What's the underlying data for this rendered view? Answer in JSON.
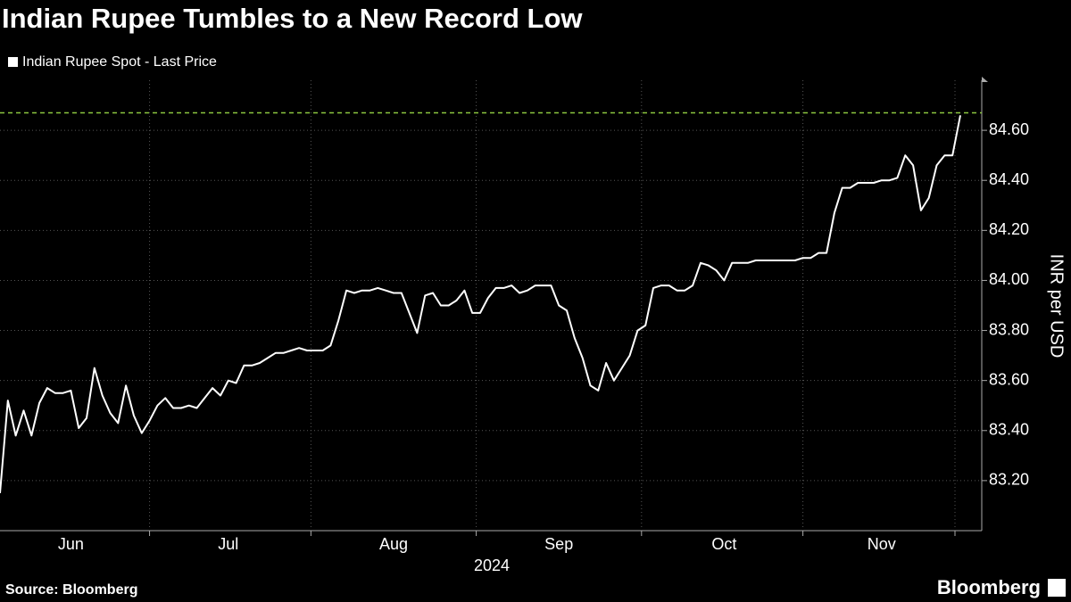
{
  "chart_data": {
    "type": "line",
    "title": "Indian Rupee Tumbles to a New Record Low",
    "source": "Source: Bloomberg",
    "brand": "Bloomberg",
    "y_label": "INR per USD",
    "x_label": "2024",
    "categories": [
      null,
      null,
      null,
      null,
      null,
      null,
      null,
      null,
      null,
      "Jun",
      null,
      null,
      null,
      null,
      null,
      null,
      null,
      null,
      null,
      null,
      null,
      null,
      null,
      null,
      null,
      null,
      null,
      null,
      null,
      "Jul",
      null,
      null,
      null,
      null,
      null,
      null,
      null,
      null,
      null,
      null,
      null,
      null,
      null,
      null,
      null,
      null,
      null,
      null,
      null,
      null,
      "Aug",
      null,
      null,
      null,
      null,
      null,
      null,
      null,
      null,
      null,
      null,
      null,
      null,
      null,
      null,
      null,
      null,
      null,
      null,
      null,
      null,
      "Sep",
      null,
      null,
      null,
      null,
      null,
      null,
      null,
      null,
      null,
      null,
      null,
      null,
      null,
      null,
      null,
      null,
      null,
      null,
      null,
      null,
      "Oct",
      null,
      null,
      null,
      null,
      null,
      null,
      null,
      null,
      null,
      null,
      null,
      null,
      null,
      null,
      null,
      null,
      null,
      null,
      null,
      "Nov",
      null,
      null,
      null,
      null,
      null,
      null,
      null,
      null,
      null,
      null
    ],
    "series": [
      {
        "name": "Indian Rupee Spot - Last Price",
        "color": "#ffffff",
        "values": [
          83.15,
          83.52,
          83.38,
          83.48,
          83.38,
          83.51,
          83.57,
          83.55,
          83.55,
          83.56,
          83.41,
          83.45,
          83.65,
          83.54,
          83.47,
          83.43,
          83.58,
          83.46,
          83.39,
          83.44,
          83.5,
          83.53,
          83.49,
          83.49,
          83.5,
          83.49,
          83.53,
          83.57,
          83.54,
          83.6,
          83.59,
          83.66,
          83.66,
          83.67,
          83.69,
          83.71,
          83.71,
          83.72,
          83.73,
          83.72,
          83.72,
          83.72,
          83.74,
          83.84,
          83.96,
          83.95,
          83.96,
          83.96,
          83.97,
          83.96,
          83.95,
          83.95,
          83.87,
          83.79,
          83.94,
          83.95,
          83.9,
          83.9,
          83.92,
          83.96,
          83.87,
          83.87,
          83.93,
          83.97,
          83.97,
          83.98,
          83.95,
          83.96,
          83.98,
          83.98,
          83.98,
          83.9,
          83.88,
          83.77,
          83.69,
          83.58,
          83.56,
          83.67,
          83.6,
          83.65,
          83.7,
          83.8,
          83.82,
          83.97,
          83.98,
          83.98,
          83.96,
          83.96,
          83.98,
          84.07,
          84.06,
          84.04,
          84.0,
          84.07,
          84.07,
          84.07,
          84.08,
          84.08,
          84.08,
          84.08,
          84.08,
          84.08,
          84.09,
          84.09,
          84.11,
          84.11,
          84.27,
          84.37,
          84.37,
          84.39,
          84.39,
          84.39,
          84.4,
          84.4,
          84.41,
          84.5,
          84.46,
          84.28,
          84.33,
          84.46,
          84.5,
          84.5,
          84.66
        ]
      }
    ],
    "reference_line": {
      "value": 84.67,
      "color": "#8cc63f"
    },
    "ylim": [
      83.0,
      84.8
    ],
    "yticks": [
      {
        "value": 83.2,
        "label": "83.20"
      },
      {
        "value": 83.4,
        "label": "83.40"
      },
      {
        "value": 83.6,
        "label": "83.60"
      },
      {
        "value": 83.8,
        "label": "83.80"
      },
      {
        "value": 84.0,
        "label": "84.00"
      },
      {
        "value": 84.2,
        "label": "84.20"
      },
      {
        "value": 84.4,
        "label": "84.40"
      },
      {
        "value": 84.6,
        "label": "84.60"
      }
    ],
    "grid": true
  }
}
